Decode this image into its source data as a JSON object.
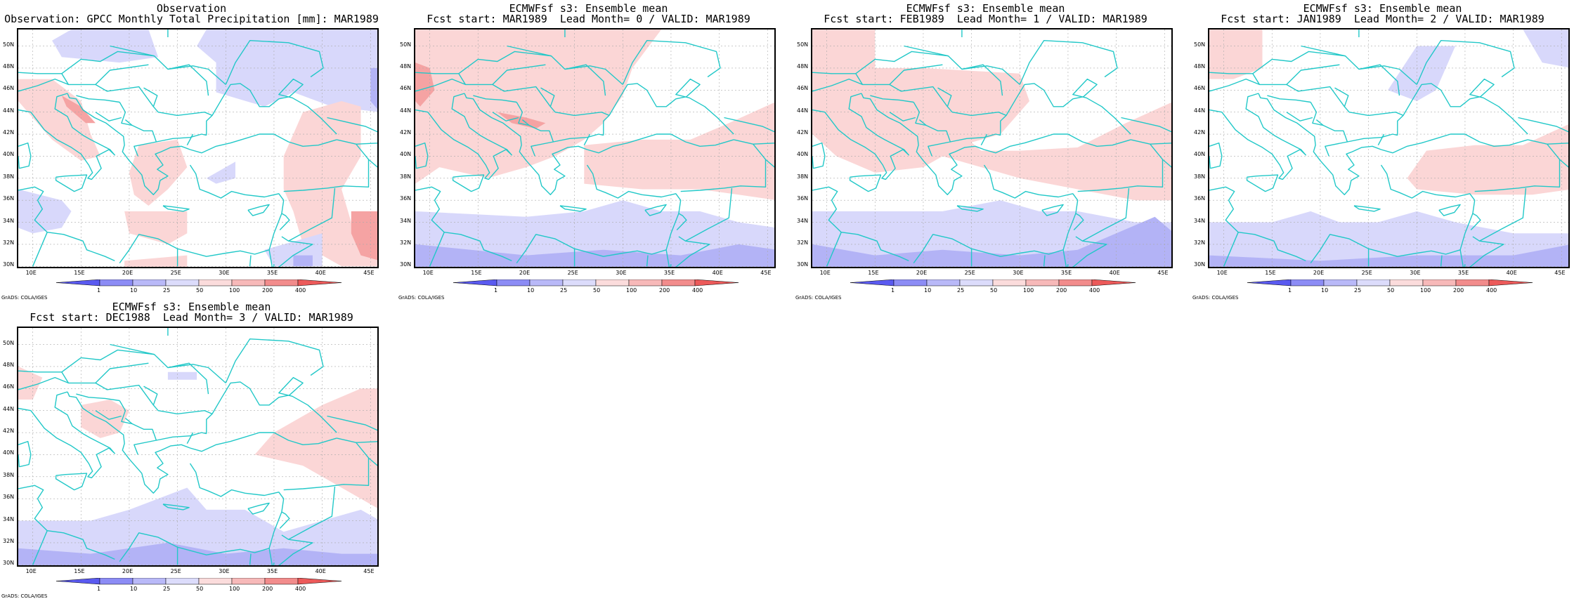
{
  "panels": [
    {
      "title_line1": "Observation",
      "title_line2": "Observation: GPCC Monthly Total Precipitation [mm]: MAR1989",
      "credit": "GrADS: COLA/IGES"
    },
    {
      "title_line1": "ECMWFsf s3: Ensemble mean",
      "title_line2": "Fcst start: MAR1989  Lead Month= 0 / VALID: MAR1989",
      "credit": "GrADS: COLA/IGES"
    },
    {
      "title_line1": "ECMWFsf s3: Ensemble mean",
      "title_line2": "Fcst start: FEB1989  Lead Month= 1 / VALID: MAR1989",
      "credit": "GrADS: COLA/IGES"
    },
    {
      "title_line1": "ECMWFsf s3: Ensemble mean",
      "title_line2": "Fcst start: JAN1989  Lead Month= 2 / VALID: MAR1989",
      "credit": "GrADS: COLA/IGES"
    },
    {
      "title_line1": "ECMWFsf s3: Ensemble mean",
      "title_line2": "Fcst start: DEC1988  Lead Month= 3 / VALID: MAR1989",
      "credit": "GrADS: COLA/IGES"
    }
  ],
  "lat_labels": [
    "50N",
    "48N",
    "46N",
    "44N",
    "42N",
    "40N",
    "38N",
    "36N",
    "34N",
    "32N",
    "30N"
  ],
  "lon_labels": [
    "10E",
    "15E",
    "20E",
    "25E",
    "30E",
    "35E",
    "40E",
    "45E"
  ],
  "colorbar_labels": [
    "1",
    "10",
    "25",
    "50",
    "100",
    "200",
    "400"
  ],
  "colorbar_colors": [
    "#5a5af0",
    "#8c8cf5",
    "#b9b9f8",
    "#dcdcfb",
    "#fbdcdc",
    "#f7b9b9",
    "#f28c8c",
    "#ec5a5a"
  ],
  "map_colors": {
    "coastline": "#22c8c8",
    "grid": "#aaaaaa",
    "light_red": "#fbd6d6",
    "red": "#f5a3a3",
    "dark_red": "#ee7b7b",
    "light_blue": "#d8d8fb",
    "blue": "#b3b3f6",
    "dark_blue": "#9c9cf2"
  }
}
